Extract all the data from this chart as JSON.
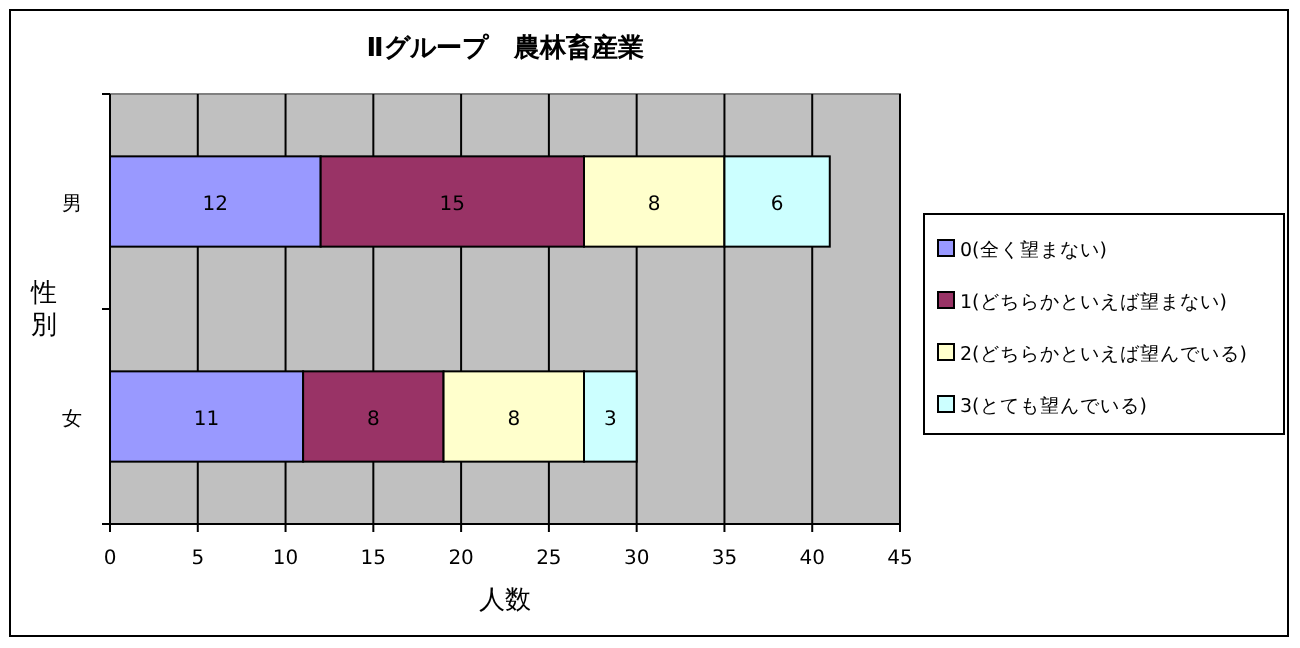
{
  "chart_data": {
    "type": "bar",
    "orientation": "horizontal",
    "stacked": true,
    "title": "Ⅱグループ　農林畜産業",
    "xlabel": "人数",
    "ylabel": "性別",
    "categories": [
      "男",
      "女"
    ],
    "series": [
      {
        "name": "0(全く望まない)",
        "color": "#9999ff",
        "values": [
          12,
          11
        ]
      },
      {
        "name": "1(どちらかといえば望まない)",
        "color": "#993366",
        "values": [
          15,
          8
        ]
      },
      {
        "name": "2(どちらかといえば望んでいる)",
        "color": "#ffffcc",
        "values": [
          8,
          8
        ]
      },
      {
        "name": "3(とても望んでいる)",
        "color": "#ccffff",
        "values": [
          6,
          3
        ]
      }
    ],
    "xlim": [
      0,
      45
    ],
    "xticks": [
      0,
      5,
      10,
      15,
      20,
      25,
      30,
      35,
      40,
      45
    ],
    "grid": "x",
    "legend": "right",
    "data_labels": true
  }
}
